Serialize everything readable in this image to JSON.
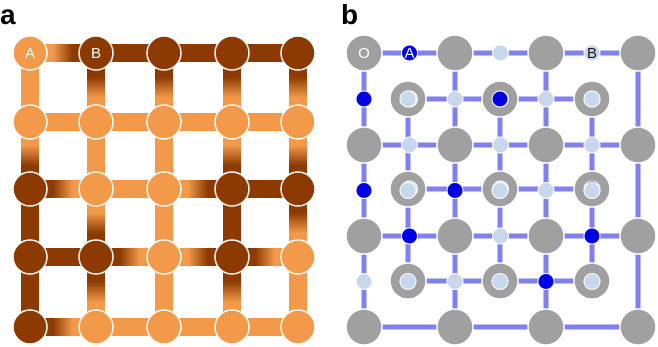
{
  "panels": [
    {
      "letter": "a",
      "type": "square-lattice",
      "rows": 5,
      "cols": 6,
      "colors": {
        "dark": "#8c3a02",
        "light": "#f39a4a",
        "node_border": "#ffffff"
      },
      "node_types": [
        [
          "L",
          "D",
          "D",
          "D",
          "D",
          "L"
        ],
        [
          "L",
          "L",
          "L",
          "L",
          "L",
          "D"
        ],
        [
          "D",
          "L",
          "L",
          "D",
          "D",
          "L"
        ],
        [
          "D",
          "D",
          "L",
          "D",
          "L",
          "L"
        ],
        [
          "D",
          "L",
          "L",
          "L",
          "L",
          "D"
        ]
      ],
      "node_labels": [
        {
          "row": 0,
          "col": 0,
          "text": "A"
        },
        {
          "row": 0,
          "col": 1,
          "text": "B"
        }
      ]
    },
    {
      "letter": "b",
      "type": "decorated-lattice",
      "rows": 5,
      "cols": 6,
      "colors": {
        "big": "#a0a0a0",
        "edge": "#8080ee",
        "dark_site": "#0000e6",
        "light_site": "#c7d8ec",
        "node_border": "#ffffff"
      },
      "horizontal_sites": [
        [
          "D",
          "L",
          "L",
          "L",
          "D"
        ],
        [
          "L",
          "L",
          "L",
          "L",
          "D"
        ],
        [
          "L",
          "L",
          "L",
          "D",
          "L"
        ],
        [
          "L",
          "L",
          "D",
          "D",
          "L"
        ],
        [
          "D",
          "L",
          "D",
          "L",
          "D"
        ]
      ],
      "vertical_sites": [
        [
          "D",
          "L",
          "L",
          "D",
          "L",
          "L"
        ],
        [
          "D",
          "L",
          "D",
          "L",
          "L",
          "L"
        ],
        [
          "L",
          "L",
          "L",
          "L",
          "D",
          "L"
        ],
        [
          "L",
          "L",
          "D",
          "L",
          "L",
          "L"
        ]
      ],
      "node_labels": [
        {
          "row": 0,
          "col": 0,
          "text": "O"
        }
      ],
      "site_labels": [
        {
          "orientation": "h",
          "row": 0,
          "col": 0,
          "text": "A"
        },
        {
          "orientation": "h",
          "row": 0,
          "col": 2,
          "text": "B"
        }
      ]
    }
  ]
}
